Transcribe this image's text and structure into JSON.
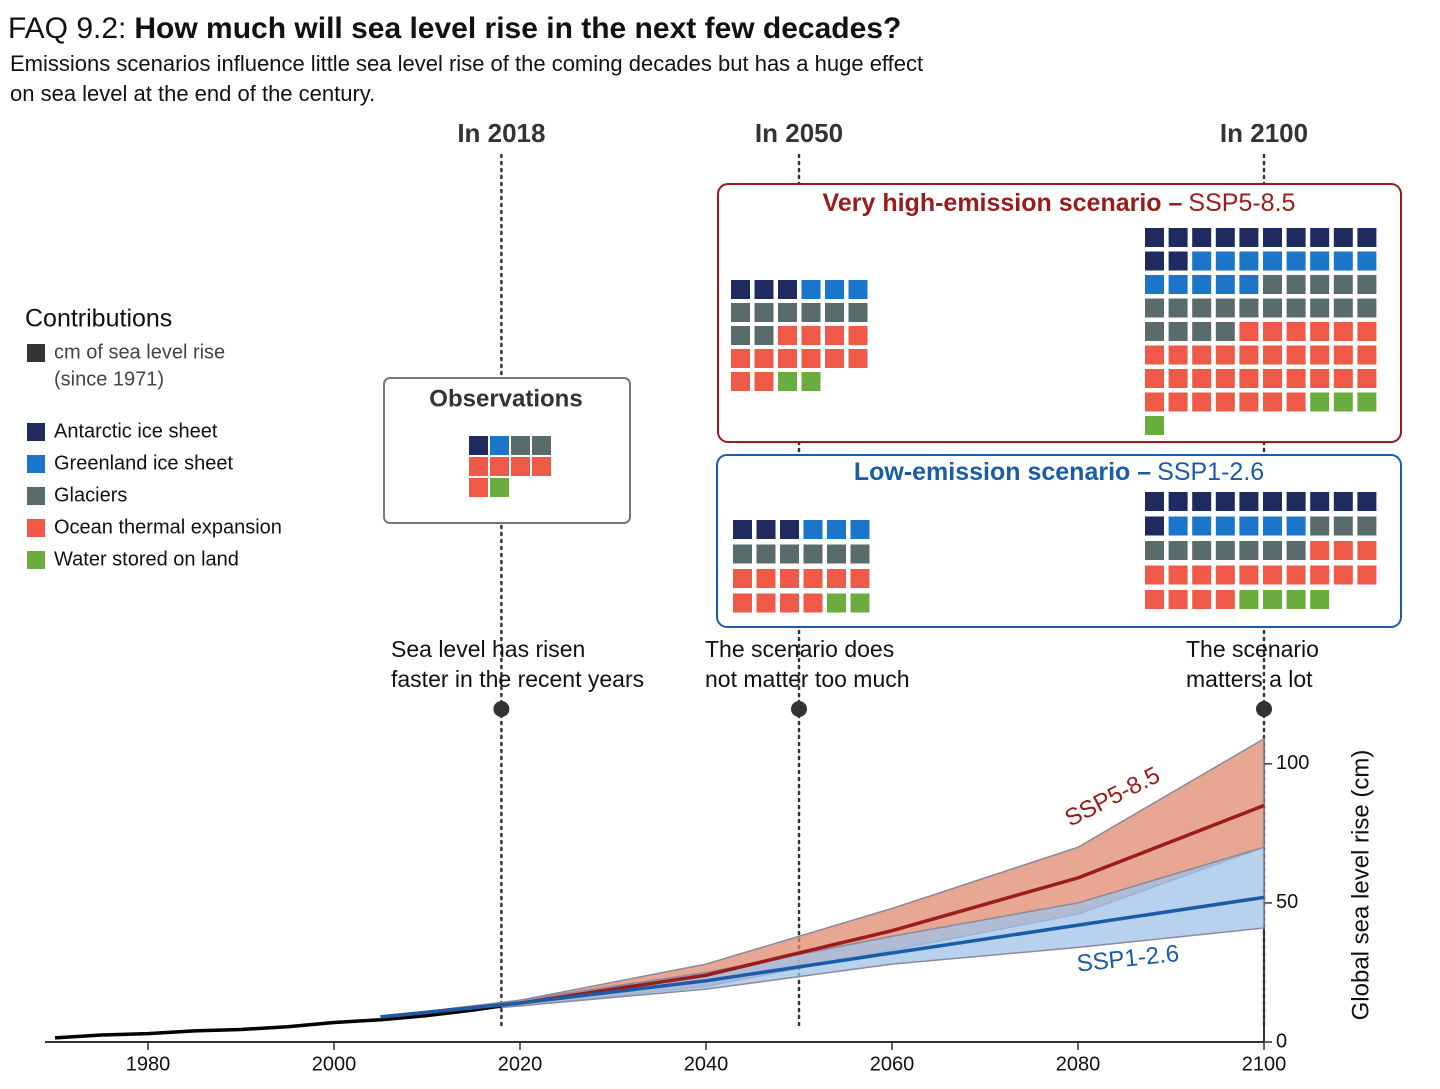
{
  "header": {
    "prefix": "FAQ 9.2:",
    "title": "How much will sea level rise in the next few decades?",
    "subtitle": [
      "Emissions scenarios influence little sea level rise of the coming decades but has a huge effect",
      "on sea level at the end of the century."
    ]
  },
  "legend": {
    "title": "Contributions",
    "unit": [
      "cm of sea level rise",
      "(since 1971)"
    ],
    "unit_color": "#333333",
    "items": [
      {
        "label": "Antarctic ice sheet",
        "color": "#1f2a5e"
      },
      {
        "label": "Greenland ice sheet",
        "color": "#1b75c9"
      },
      {
        "label": "Glaciers",
        "color": "#5a6b6b"
      },
      {
        "label": "Ocean thermal expansion",
        "color": "#ef5a48"
      },
      {
        "label": "Water stored on land",
        "color": "#6aad3e"
      }
    ]
  },
  "markers": [
    {
      "value": 2018,
      "label": "In 2018",
      "note": [
        "Sea level has risen",
        "faster in the recent years"
      ]
    },
    {
      "value": 2050,
      "label": "In 2050",
      "note": [
        "The scenario does",
        "not matter too much"
      ]
    },
    {
      "value": 2100,
      "label": "In 2100",
      "note": [
        "The scenario",
        "matters a lot"
      ]
    }
  ],
  "observations": {
    "title": "Observations",
    "counts": [
      1,
      1,
      2,
      5,
      1
    ]
  },
  "scenarios": [
    {
      "heading": "Very high-emission scenario –",
      "name": "SSP5-8.5",
      "color": "#9b1b1b",
      "in_2050": [
        3,
        3,
        8,
        12,
        2
      ],
      "in_2100": [
        12,
        13,
        19,
        33,
        4
      ]
    },
    {
      "heading": "Low-emission scenario –",
      "name": "SSP1-2.6",
      "color": "#1a5ca8",
      "in_2050": [
        3,
        3,
        6,
        10,
        2
      ],
      "in_2100": [
        11,
        6,
        10,
        17,
        4
      ]
    }
  ],
  "chart_data": {
    "type": "line",
    "ylabel": "Global sea level rise (cm)",
    "xlim": [
      1970,
      2100
    ],
    "ylim": [
      0,
      110
    ],
    "xticks": [
      1980,
      2000,
      2020,
      2040,
      2060,
      2080,
      2100
    ],
    "yticks": [
      0,
      50,
      100
    ],
    "series": [
      {
        "color": "#000000",
        "x": [
          1970,
          1975,
          1980,
          1985,
          1990,
          1995,
          2000,
          2005,
          2010,
          2015,
          2018
        ],
        "values": [
          1.5,
          2.5,
          3,
          4,
          4.5,
          5.5,
          7,
          8,
          9.5,
          11.5,
          13
        ]
      },
      {
        "name": "SSP5-8.5",
        "color": "#9b1b1b",
        "band_color": "#e08a6e",
        "x": [
          2005,
          2020,
          2040,
          2060,
          2080,
          2100
        ],
        "values": [
          9,
          14,
          24,
          40,
          59,
          85
        ],
        "low": [
          9,
          13,
          20,
          33,
          46,
          70
        ],
        "high": [
          9,
          15,
          28,
          48,
          70,
          109
        ]
      },
      {
        "name": "SSP1-2.6",
        "color": "#1a5ca8",
        "band_color": "#9fc2e8",
        "x": [
          2005,
          2020,
          2040,
          2060,
          2080,
          2100
        ],
        "values": [
          9,
          14,
          22,
          32,
          42,
          52
        ],
        "low": [
          9,
          13,
          19,
          28,
          34,
          41
        ],
        "high": [
          9,
          15,
          25,
          38,
          50,
          70
        ]
      }
    ]
  }
}
